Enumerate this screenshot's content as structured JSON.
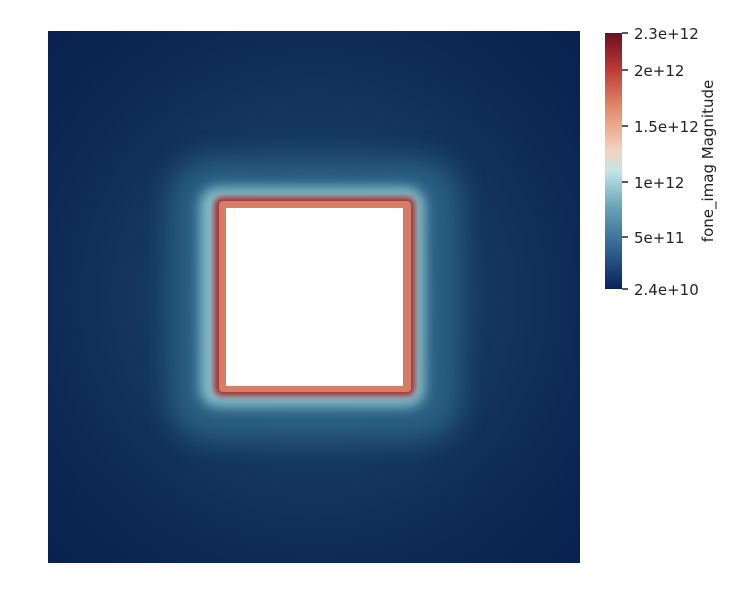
{
  "colorbar": {
    "title": "fone_imag Magnitude",
    "tick_labels": [
      "2.3e+12",
      "2e+12",
      "1.5e+12",
      "1e+12",
      "5e+11",
      "2.4e+10"
    ],
    "tick_values": [
      2300000000000.0,
      2000000000000.0,
      1500000000000.0,
      1000000000000.0,
      500000000000.0,
      24000000000.0
    ],
    "range": [
      24000000000.0,
      2300000000000.0
    ],
    "colormap": [
      "#09215a",
      "#2c5c8a",
      "#6aa3b8",
      "#c3e5e8",
      "#f5d3c0",
      "#e38f70",
      "#b93a32",
      "#6a0f23"
    ]
  },
  "field": {
    "background_color": "#0b2552",
    "hole_color": "#ffffff",
    "edge_color": "#9e2a2b",
    "glow_color": "#6fa3b2"
  }
}
